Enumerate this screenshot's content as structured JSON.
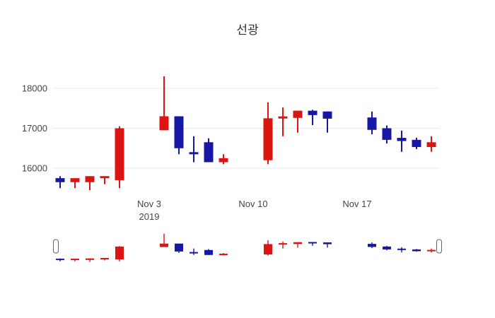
{
  "title": "선광",
  "colors": {
    "increasing": "#dc1412",
    "decreasing": "#1717a6",
    "grid": "#e9e9e9",
    "tick_label": "#444444",
    "title": "#333333",
    "background": "#ffffff",
    "handle_border": "#666666"
  },
  "chart_data": {
    "type": "candlestick",
    "title": "선광",
    "xlabel": "",
    "ylabel": "",
    "ylim": [
      15350,
      18400
    ],
    "y_ticks": [
      16000,
      17000,
      18000
    ],
    "grid": true,
    "legend": false,
    "x_ticks": [
      {
        "day_offset": 6,
        "lines": [
          "Nov 3",
          "2019"
        ]
      },
      {
        "day_offset": 13,
        "lines": [
          "Nov 10"
        ]
      },
      {
        "day_offset": 20,
        "lines": [
          "Nov 17"
        ]
      }
    ],
    "increasing_means": "close >= open (red)",
    "decreasing_means": "close < open (blue)",
    "candles": [
      {
        "date": "2019-10-28",
        "day_offset": 0,
        "open": 15750,
        "high": 15800,
        "low": 15500,
        "close": 15650
      },
      {
        "date": "2019-10-29",
        "day_offset": 1,
        "open": 15650,
        "high": 15750,
        "low": 15500,
        "close": 15750
      },
      {
        "date": "2019-10-30",
        "day_offset": 2,
        "open": 15650,
        "high": 15800,
        "low": 15450,
        "close": 15800
      },
      {
        "date": "2019-10-31",
        "day_offset": 3,
        "open": 15750,
        "high": 15800,
        "low": 15600,
        "close": 15800
      },
      {
        "date": "2019-11-01",
        "day_offset": 4,
        "open": 15700,
        "high": 17050,
        "low": 15500,
        "close": 17000
      },
      {
        "date": "2019-11-04",
        "day_offset": 7,
        "open": 16950,
        "high": 18300,
        "low": 16950,
        "close": 17300
      },
      {
        "date": "2019-11-05",
        "day_offset": 8,
        "open": 17300,
        "high": 17300,
        "low": 16350,
        "close": 16500
      },
      {
        "date": "2019-11-06",
        "day_offset": 9,
        "open": 16400,
        "high": 16800,
        "low": 16150,
        "close": 16350
      },
      {
        "date": "2019-11-07",
        "day_offset": 10,
        "open": 16650,
        "high": 16750,
        "low": 16150,
        "close": 16150
      },
      {
        "date": "2019-11-08",
        "day_offset": 11,
        "open": 16150,
        "high": 16350,
        "low": 16100,
        "close": 16250
      },
      {
        "date": "2019-11-11",
        "day_offset": 14,
        "open": 16200,
        "high": 17650,
        "low": 16100,
        "close": 17250
      },
      {
        "date": "2019-11-12",
        "day_offset": 15,
        "open": 17260,
        "high": 17520,
        "low": 16800,
        "close": 17280
      },
      {
        "date": "2019-11-13",
        "day_offset": 16,
        "open": 17260,
        "high": 17440,
        "low": 16890,
        "close": 17440
      },
      {
        "date": "2019-11-14",
        "day_offset": 17,
        "open": 17440,
        "high": 17460,
        "low": 17080,
        "close": 17330
      },
      {
        "date": "2019-11-15",
        "day_offset": 18,
        "open": 17420,
        "high": 17420,
        "low": 16890,
        "close": 17240
      },
      {
        "date": "2019-11-18",
        "day_offset": 21,
        "open": 17270,
        "high": 17420,
        "low": 16850,
        "close": 16960
      },
      {
        "date": "2019-11-19",
        "day_offset": 22,
        "open": 17000,
        "high": 17070,
        "low": 16620,
        "close": 16710
      },
      {
        "date": "2019-11-20",
        "day_offset": 23,
        "open": 16760,
        "high": 16940,
        "low": 16410,
        "close": 16680
      },
      {
        "date": "2019-11-21",
        "day_offset": 24,
        "open": 16710,
        "high": 16760,
        "low": 16480,
        "close": 16530
      },
      {
        "date": "2019-11-22",
        "day_offset": 25,
        "open": 16530,
        "high": 16800,
        "low": 16410,
        "close": 16650
      }
    ]
  },
  "rangeslider": {
    "visible": true,
    "handles": [
      "left",
      "right"
    ]
  }
}
